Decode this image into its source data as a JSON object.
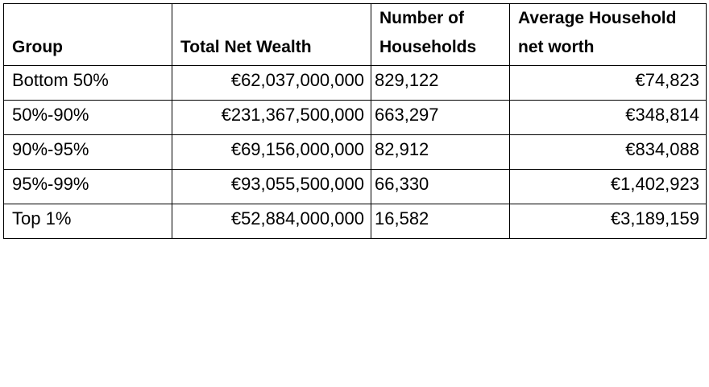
{
  "table": {
    "header": [
      "Group",
      "Total Net Wealth",
      "Number of Households",
      "Average Household net worth"
    ],
    "rows": [
      [
        "Bottom 50%",
        "€62,037,000,000",
        "829,122",
        "€74,823"
      ],
      [
        "50%-90%",
        "€231,367,500,000",
        "663,297",
        "€348,814"
      ],
      [
        "90%-95%",
        "€69,156,000,000",
        "82,912",
        "€834,088"
      ],
      [
        "95%-99%",
        "€93,055,500,000",
        "66,330",
        "€1,402,923"
      ],
      [
        "Top 1%",
        "€52,884,000,000",
        "16,582",
        "€3,189,159"
      ]
    ]
  }
}
